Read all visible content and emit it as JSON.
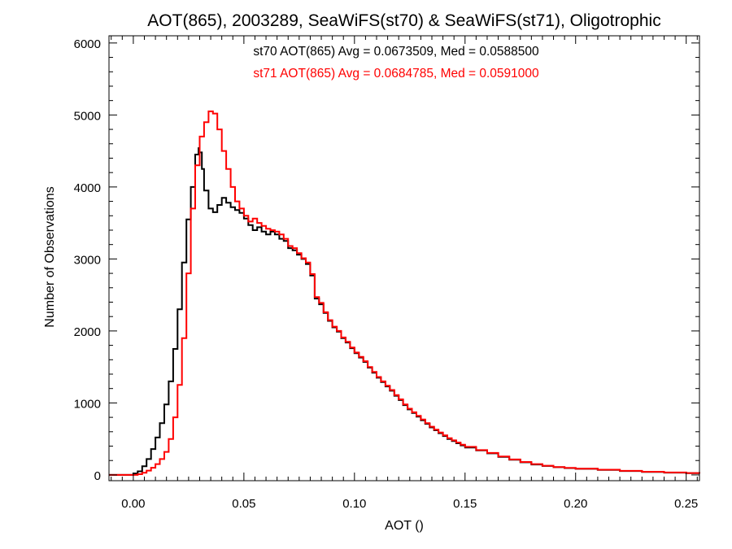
{
  "chart_data": {
    "type": "line",
    "title": "AOT(865), 2003289, SeaWiFS(st70) & SeaWiFS(st71), Oligotrophic",
    "xlabel": "AOT ()",
    "ylabel": "Number of Observations",
    "xlim": [
      -0.011,
      0.256
    ],
    "ylim": [
      -80,
      6100
    ],
    "xticks": [
      0.0,
      0.05,
      0.1,
      0.15,
      0.2,
      0.25
    ],
    "xtick_labels": [
      "0.00",
      "0.05",
      "0.10",
      "0.15",
      "0.20",
      "0.25"
    ],
    "yticks": [
      0,
      1000,
      2000,
      3000,
      4000,
      5000,
      6000
    ],
    "ytick_labels": [
      "0",
      "1000",
      "2000",
      "3000",
      "4000",
      "5000",
      "6000"
    ],
    "grid": false,
    "step": "histogram",
    "annotations": [
      {
        "text": "st70 AOT(865) Avg = 0.0673509, Med = 0.0588500",
        "color": "#000000"
      },
      {
        "text": "st71 AOT(865) Avg = 0.0684785, Med = 0.0591000",
        "color": "#ff0000"
      }
    ],
    "series": [
      {
        "color": "#000000",
        "points": [
          [
            -0.011,
            0
          ],
          [
            -0.005,
            0
          ],
          [
            0.0,
            20
          ],
          [
            0.002,
            50
          ],
          [
            0.004,
            120
          ],
          [
            0.006,
            220
          ],
          [
            0.008,
            360
          ],
          [
            0.01,
            520
          ],
          [
            0.012,
            720
          ],
          [
            0.014,
            980
          ],
          [
            0.016,
            1300
          ],
          [
            0.018,
            1750
          ],
          [
            0.02,
            2300
          ],
          [
            0.022,
            2950
          ],
          [
            0.024,
            3550
          ],
          [
            0.026,
            4000
          ],
          [
            0.028,
            4450
          ],
          [
            0.0295,
            4540
          ],
          [
            0.03,
            4480
          ],
          [
            0.031,
            4250
          ],
          [
            0.032,
            3950
          ],
          [
            0.034,
            3700
          ],
          [
            0.036,
            3650
          ],
          [
            0.038,
            3750
          ],
          [
            0.04,
            3850
          ],
          [
            0.042,
            3780
          ],
          [
            0.044,
            3720
          ],
          [
            0.046,
            3680
          ],
          [
            0.048,
            3640
          ],
          [
            0.05,
            3560
          ],
          [
            0.052,
            3470
          ],
          [
            0.054,
            3400
          ],
          [
            0.056,
            3440
          ],
          [
            0.058,
            3380
          ],
          [
            0.06,
            3340
          ],
          [
            0.062,
            3380
          ],
          [
            0.064,
            3340
          ],
          [
            0.066,
            3280
          ],
          [
            0.068,
            3250
          ],
          [
            0.07,
            3150
          ],
          [
            0.072,
            3120
          ],
          [
            0.074,
            3060
          ],
          [
            0.076,
            3000
          ],
          [
            0.078,
            2930
          ],
          [
            0.08,
            2770
          ],
          [
            0.082,
            2450
          ],
          [
            0.084,
            2370
          ],
          [
            0.086,
            2250
          ],
          [
            0.088,
            2140
          ],
          [
            0.09,
            2050
          ],
          [
            0.092,
            1990
          ],
          [
            0.094,
            1900
          ],
          [
            0.096,
            1840
          ],
          [
            0.098,
            1760
          ],
          [
            0.1,
            1690
          ],
          [
            0.102,
            1630
          ],
          [
            0.104,
            1570
          ],
          [
            0.106,
            1490
          ],
          [
            0.108,
            1420
          ],
          [
            0.11,
            1350
          ],
          [
            0.112,
            1290
          ],
          [
            0.114,
            1230
          ],
          [
            0.116,
            1170
          ],
          [
            0.118,
            1100
          ],
          [
            0.12,
            1040
          ],
          [
            0.122,
            970
          ],
          [
            0.124,
            910
          ],
          [
            0.126,
            860
          ],
          [
            0.128,
            810
          ],
          [
            0.13,
            760
          ],
          [
            0.132,
            710
          ],
          [
            0.134,
            660
          ],
          [
            0.136,
            620
          ],
          [
            0.138,
            580
          ],
          [
            0.14,
            540
          ],
          [
            0.142,
            500
          ],
          [
            0.144,
            470
          ],
          [
            0.146,
            440
          ],
          [
            0.148,
            410
          ],
          [
            0.15,
            380
          ],
          [
            0.155,
            340
          ],
          [
            0.16,
            300
          ],
          [
            0.165,
            250
          ],
          [
            0.17,
            210
          ],
          [
            0.175,
            175
          ],
          [
            0.18,
            145
          ],
          [
            0.185,
            125
          ],
          [
            0.19,
            108
          ],
          [
            0.195,
            95
          ],
          [
            0.2,
            85
          ],
          [
            0.21,
            70
          ],
          [
            0.22,
            55
          ],
          [
            0.23,
            42
          ],
          [
            0.24,
            32
          ],
          [
            0.25,
            25
          ],
          [
            0.256,
            20
          ]
        ]
      },
      {
        "color": "#ff0000",
        "points": [
          [
            -0.011,
            0
          ],
          [
            -0.002,
            0
          ],
          [
            0.002,
            10
          ],
          [
            0.004,
            30
          ],
          [
            0.006,
            60
          ],
          [
            0.008,
            100
          ],
          [
            0.01,
            150
          ],
          [
            0.012,
            220
          ],
          [
            0.014,
            320
          ],
          [
            0.016,
            500
          ],
          [
            0.018,
            800
          ],
          [
            0.02,
            1250
          ],
          [
            0.022,
            1900
          ],
          [
            0.024,
            2800
          ],
          [
            0.026,
            3700
          ],
          [
            0.028,
            4300
          ],
          [
            0.03,
            4700
          ],
          [
            0.032,
            4900
          ],
          [
            0.034,
            5050
          ],
          [
            0.036,
            5020
          ],
          [
            0.038,
            4800
          ],
          [
            0.04,
            4500
          ],
          [
            0.042,
            4250
          ],
          [
            0.044,
            4000
          ],
          [
            0.046,
            3800
          ],
          [
            0.048,
            3700
          ],
          [
            0.05,
            3600
          ],
          [
            0.052,
            3520
          ],
          [
            0.054,
            3560
          ],
          [
            0.056,
            3500
          ],
          [
            0.058,
            3460
          ],
          [
            0.06,
            3420
          ],
          [
            0.062,
            3400
          ],
          [
            0.064,
            3380
          ],
          [
            0.066,
            3340
          ],
          [
            0.068,
            3280
          ],
          [
            0.07,
            3180
          ],
          [
            0.072,
            3150
          ],
          [
            0.074,
            3080
          ],
          [
            0.076,
            3010
          ],
          [
            0.078,
            2950
          ],
          [
            0.08,
            2790
          ],
          [
            0.082,
            2470
          ],
          [
            0.084,
            2390
          ],
          [
            0.086,
            2260
          ],
          [
            0.088,
            2150
          ],
          [
            0.09,
            2060
          ],
          [
            0.092,
            2000
          ],
          [
            0.094,
            1910
          ],
          [
            0.096,
            1850
          ],
          [
            0.098,
            1770
          ],
          [
            0.1,
            1700
          ],
          [
            0.102,
            1640
          ],
          [
            0.104,
            1580
          ],
          [
            0.106,
            1500
          ],
          [
            0.108,
            1430
          ],
          [
            0.11,
            1360
          ],
          [
            0.112,
            1300
          ],
          [
            0.114,
            1240
          ],
          [
            0.116,
            1180
          ],
          [
            0.118,
            1110
          ],
          [
            0.12,
            1050
          ],
          [
            0.122,
            980
          ],
          [
            0.124,
            920
          ],
          [
            0.126,
            870
          ],
          [
            0.128,
            820
          ],
          [
            0.13,
            770
          ],
          [
            0.132,
            720
          ],
          [
            0.134,
            670
          ],
          [
            0.136,
            630
          ],
          [
            0.138,
            590
          ],
          [
            0.14,
            550
          ],
          [
            0.142,
            510
          ],
          [
            0.144,
            480
          ],
          [
            0.146,
            450
          ],
          [
            0.148,
            420
          ],
          [
            0.15,
            390
          ],
          [
            0.155,
            345
          ],
          [
            0.16,
            305
          ],
          [
            0.165,
            255
          ],
          [
            0.17,
            215
          ],
          [
            0.175,
            180
          ],
          [
            0.18,
            150
          ],
          [
            0.185,
            128
          ],
          [
            0.19,
            110
          ],
          [
            0.195,
            97
          ],
          [
            0.2,
            87
          ],
          [
            0.21,
            72
          ],
          [
            0.22,
            57
          ],
          [
            0.23,
            44
          ],
          [
            0.24,
            34
          ],
          [
            0.25,
            26
          ],
          [
            0.256,
            21
          ]
        ]
      }
    ]
  }
}
